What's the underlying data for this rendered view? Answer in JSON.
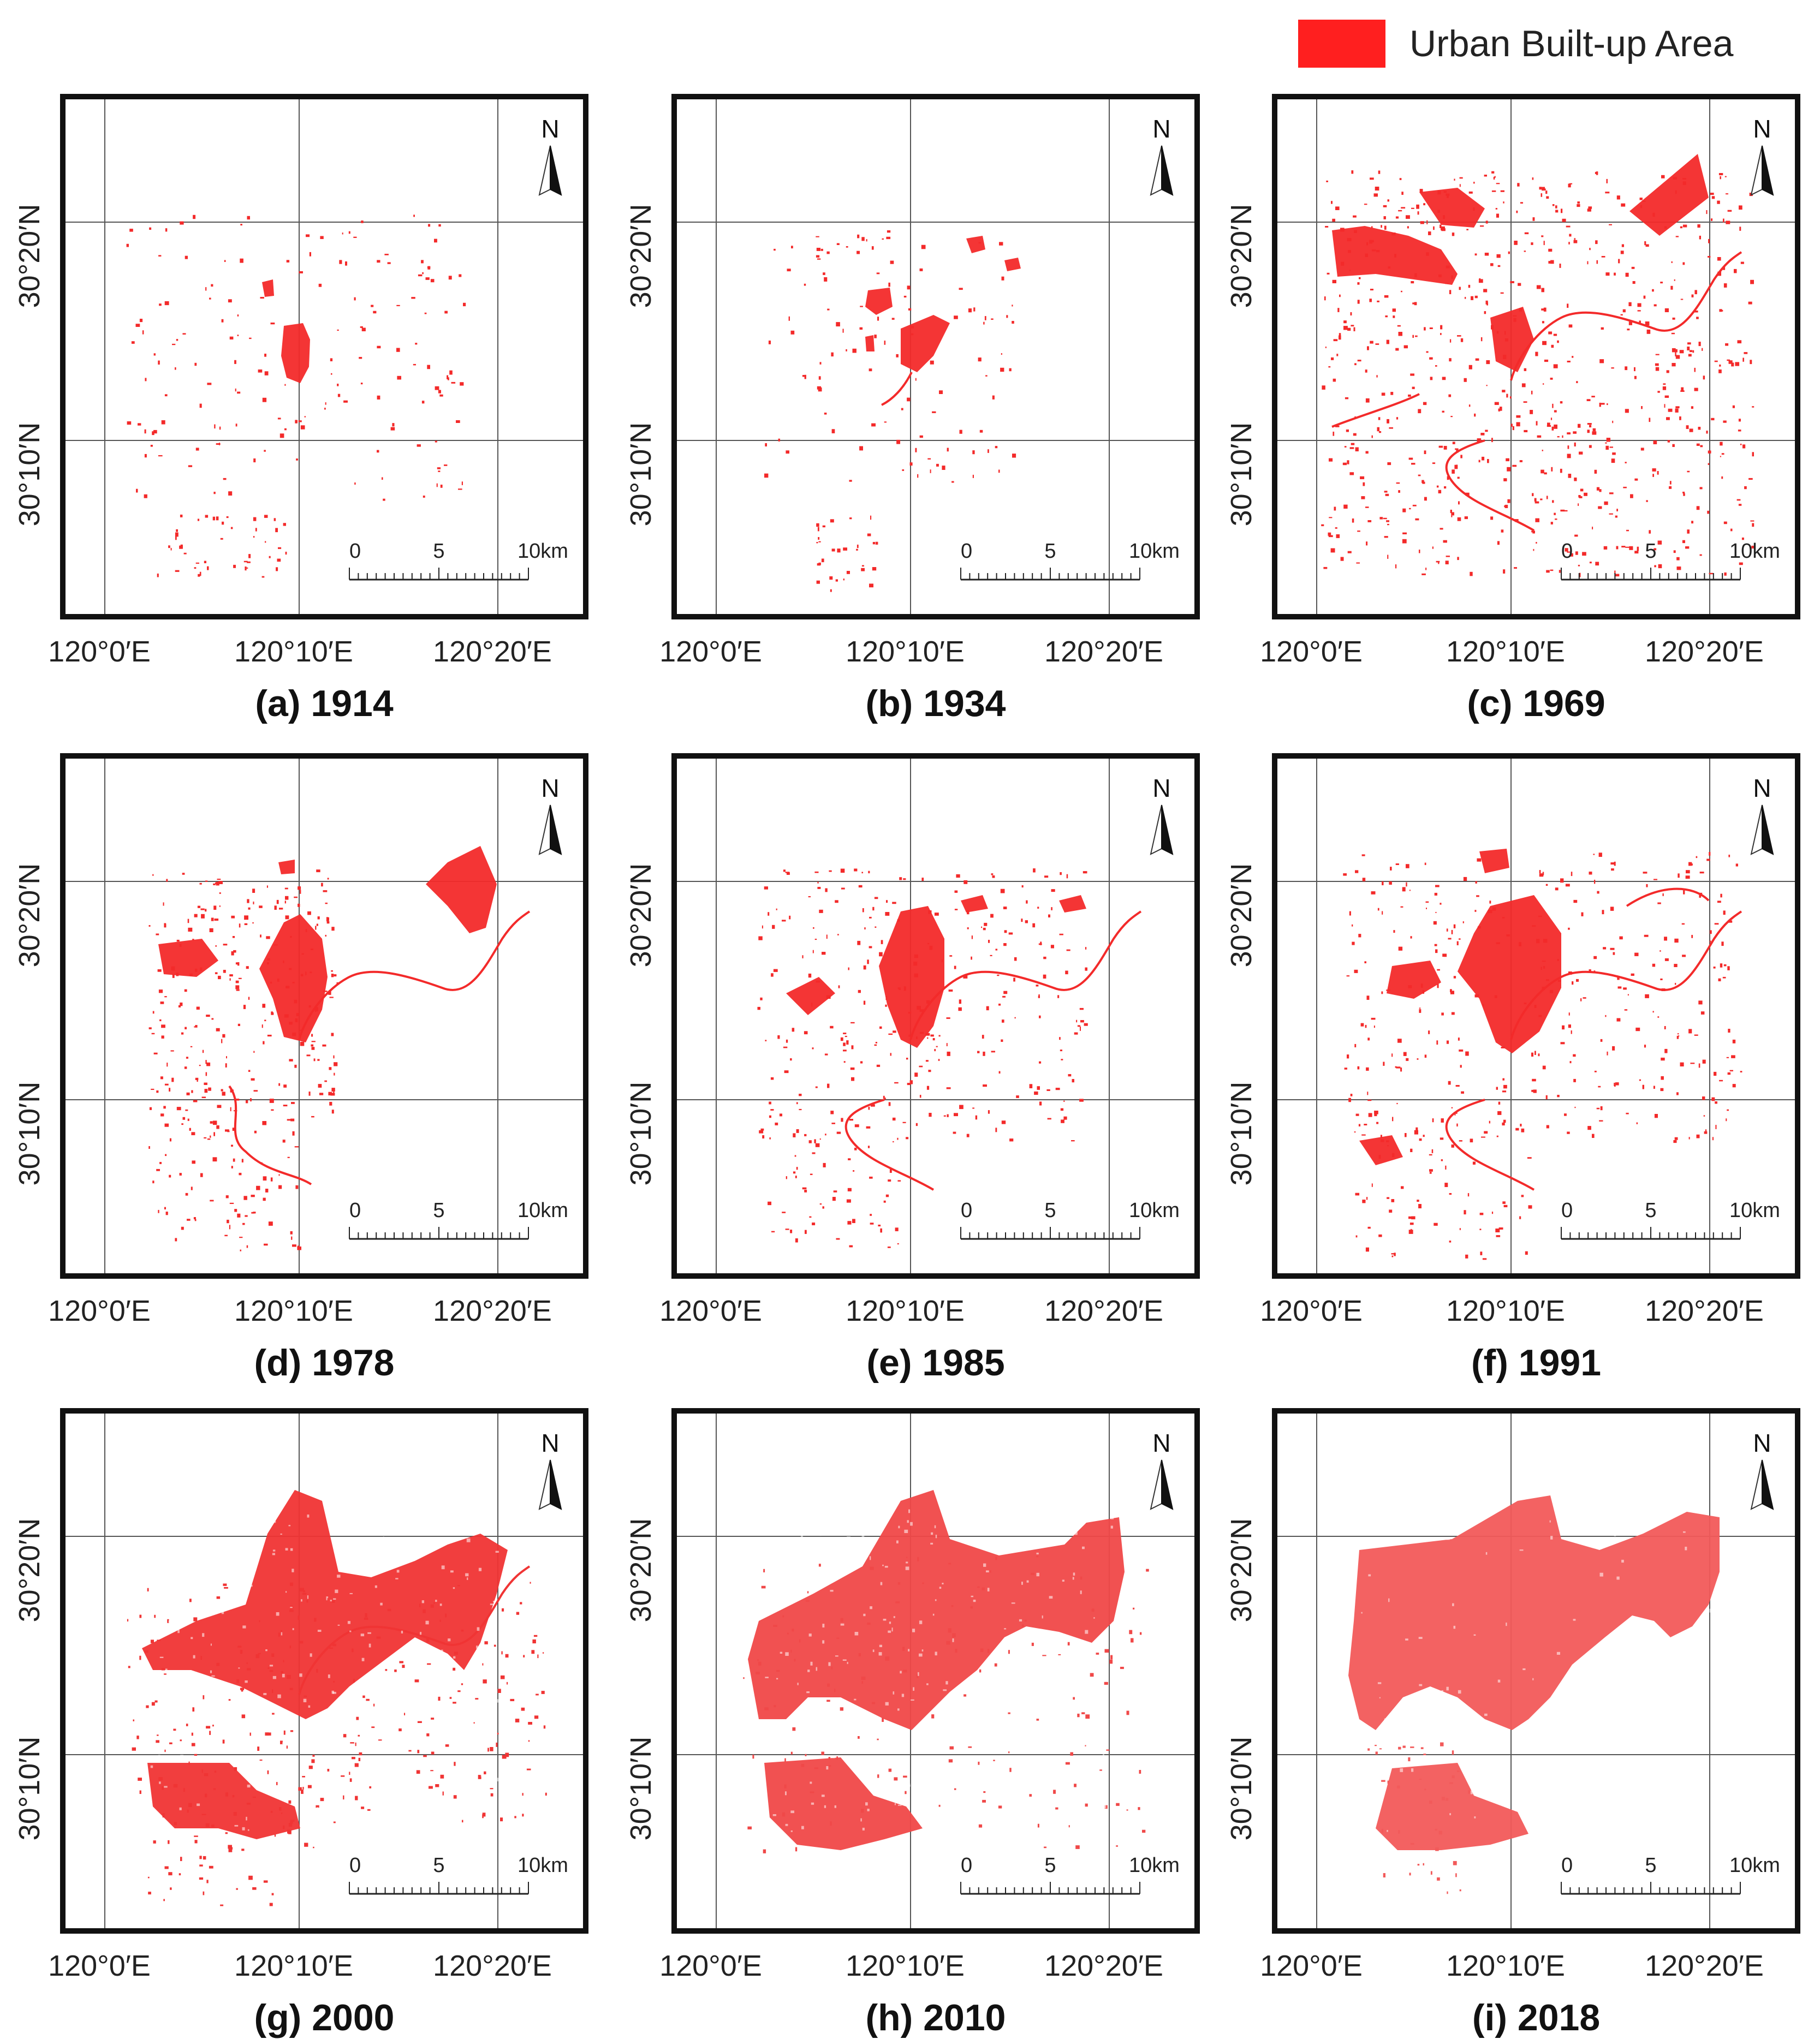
{
  "figure": {
    "legend": {
      "label": "Urban Built-up Area",
      "color": "#ff1f1f"
    },
    "axes": {
      "latitude_labels": [
        "30°20′N",
        "30°10′N"
      ],
      "longitude_labels": [
        "120°0′E",
        "120°10′E",
        "120°20′E"
      ]
    },
    "north_arrow_label": "N",
    "scale_bar": {
      "ticks": [
        "0",
        "5",
        "10km"
      ]
    },
    "panels": [
      {
        "id": "a",
        "year": "1914",
        "caption": "(a) 1914",
        "color": "#f32a2a",
        "shape": "a"
      },
      {
        "id": "b",
        "year": "1934",
        "caption": "(b) 1934",
        "color": "#f32a2a",
        "shape": "b"
      },
      {
        "id": "c",
        "year": "1969",
        "caption": "(c) 1969",
        "color": "#f32a2a",
        "shape": "c"
      },
      {
        "id": "d",
        "year": "1978",
        "caption": "(d) 1978",
        "color": "#f32a2a",
        "shape": "d"
      },
      {
        "id": "e",
        "year": "1985",
        "caption": "(e) 1985",
        "color": "#f32a2a",
        "shape": "e"
      },
      {
        "id": "f",
        "year": "1991",
        "caption": "(f) 1991",
        "color": "#f32a2a",
        "shape": "f"
      },
      {
        "id": "g",
        "year": "2000",
        "caption": "(g) 2000",
        "color": "#f03434",
        "shape": "g"
      },
      {
        "id": "h",
        "year": "2010",
        "caption": "(h) 2010",
        "color": "#f04848",
        "shape": "h"
      },
      {
        "id": "i",
        "year": "2018",
        "caption": "(i) 2018",
        "color": "#f25a5a",
        "shape": "i"
      }
    ]
  }
}
